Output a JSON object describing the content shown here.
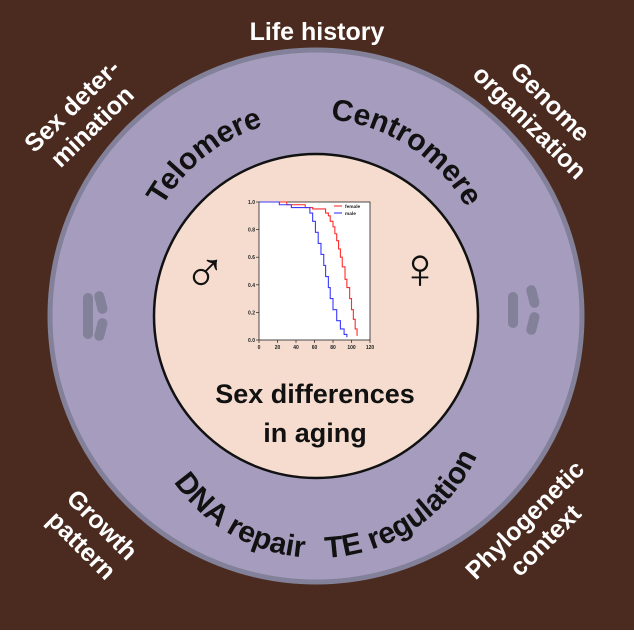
{
  "colors": {
    "outer": "#4b2b1f",
    "ring": "#a59cbe",
    "ring_edge": "#83809a",
    "inner": "#f5dccf",
    "white": "#ffffff",
    "ink": "#111111",
    "female": "#ff2d2d",
    "male": "#3a3aff"
  },
  "outer_labels": {
    "top": "Life history",
    "tl_1": "Sex deter-",
    "tl_2": "mination",
    "tr_1": "Genome",
    "tr_2": "organization",
    "bl_1": "Growth",
    "bl_2": "pattern",
    "br_1": "Phylogenetic",
    "br_2": "context"
  },
  "ring_labels": {
    "telomere": "Telomere",
    "centromere": "Centromere",
    "dna_repair": "DNA repair",
    "te_regulation": "TE regulation"
  },
  "center": {
    "line1": "Sex differences",
    "line2": "in aging",
    "male_symbol": "♂",
    "female_symbol": "♀"
  },
  "chart_data": {
    "type": "line",
    "title": "",
    "xlabel": "",
    "ylabel": "",
    "xlim": [
      0,
      120
    ],
    "ylim": [
      0,
      1.0
    ],
    "x_ticks": [
      "0",
      "20",
      "40",
      "60",
      "80",
      "100",
      "120"
    ],
    "y_ticks": [
      "0.0",
      "0.2",
      "0.4",
      "0.6",
      "0.8",
      "1.0"
    ],
    "legend_position": "top-right",
    "series": [
      {
        "name": "female",
        "color": "#ff2d2d",
        "points": [
          [
            0,
            1.0
          ],
          [
            25,
            1.0
          ],
          [
            30,
            0.98
          ],
          [
            45,
            0.98
          ],
          [
            50,
            0.96
          ],
          [
            55,
            0.96
          ],
          [
            58,
            0.95
          ],
          [
            70,
            0.95
          ],
          [
            72,
            0.92
          ],
          [
            75,
            0.9
          ],
          [
            77,
            0.86
          ],
          [
            80,
            0.82
          ],
          [
            82,
            0.77
          ],
          [
            84,
            0.72
          ],
          [
            86,
            0.66
          ],
          [
            88,
            0.6
          ],
          [
            90,
            0.53
          ],
          [
            93,
            0.44
          ],
          [
            95,
            0.38
          ],
          [
            98,
            0.3
          ],
          [
            100,
            0.22
          ],
          [
            102,
            0.15
          ],
          [
            104,
            0.08
          ],
          [
            106,
            0.03
          ]
        ]
      },
      {
        "name": "male",
        "color": "#3a3aff",
        "points": [
          [
            0,
            1.0
          ],
          [
            20,
            1.0
          ],
          [
            22,
            0.98
          ],
          [
            30,
            0.98
          ],
          [
            35,
            0.96
          ],
          [
            50,
            0.96
          ],
          [
            55,
            0.92
          ],
          [
            58,
            0.86
          ],
          [
            61,
            0.78
          ],
          [
            64,
            0.7
          ],
          [
            67,
            0.62
          ],
          [
            70,
            0.54
          ],
          [
            72,
            0.46
          ],
          [
            75,
            0.38
          ],
          [
            77,
            0.3
          ],
          [
            80,
            0.22
          ],
          [
            84,
            0.14
          ],
          [
            88,
            0.08
          ],
          [
            92,
            0.04
          ],
          [
            95,
            0.02
          ]
        ]
      }
    ]
  }
}
